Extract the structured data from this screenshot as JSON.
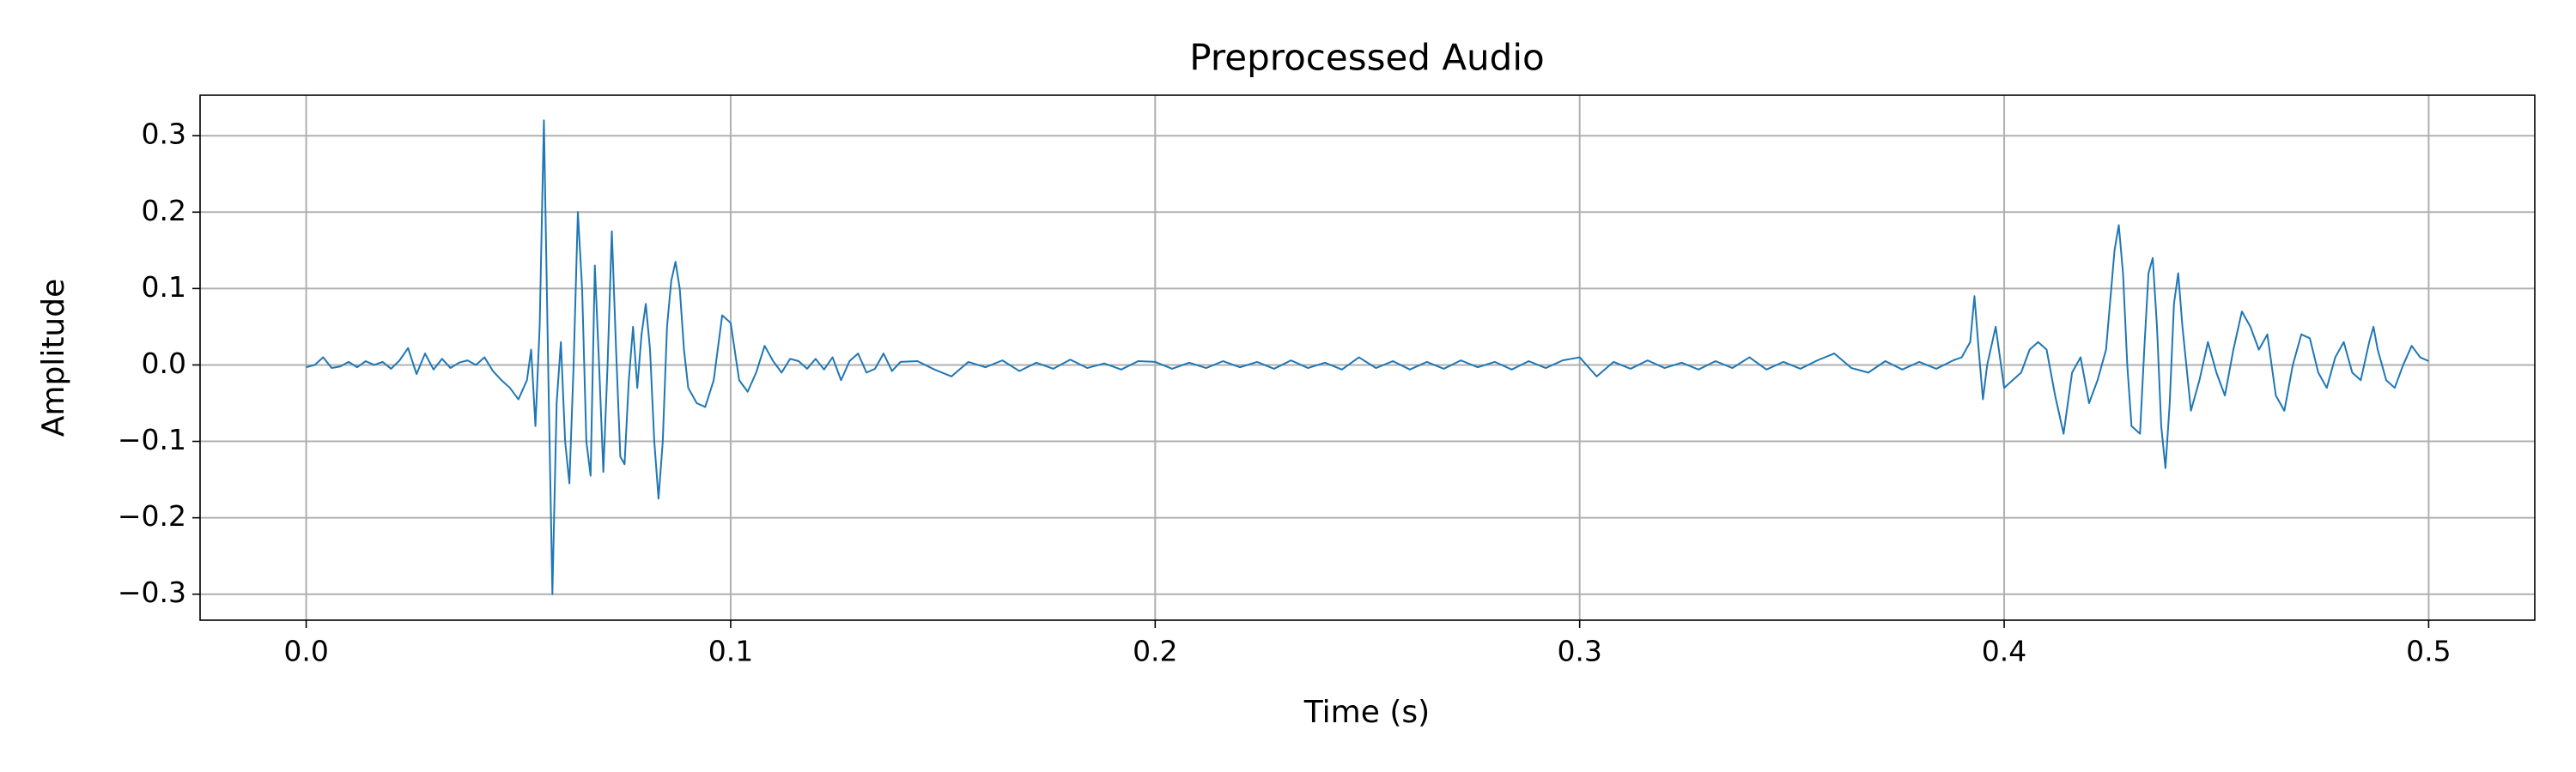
{
  "chart_data": {
    "type": "line",
    "title": "Preprocessed Audio",
    "x_label": "Time (s)",
    "y_label": "Amplitude",
    "x": [
      0,
      0.002,
      0.004,
      0.006,
      0.008,
      0.01,
      0.012,
      0.014,
      0.016,
      0.018,
      0.02,
      0.022,
      0.024,
      0.026,
      0.028,
      0.03,
      0.032,
      0.034,
      0.036,
      0.038,
      0.04,
      0.042,
      0.044,
      0.046,
      0.048,
      0.05,
      0.052,
      0.053,
      0.054,
      0.055,
      0.056,
      0.057,
      0.058,
      0.059,
      0.06,
      0.061,
      0.062,
      0.063,
      0.064,
      0.065,
      0.066,
      0.067,
      0.068,
      0.069,
      0.07,
      0.071,
      0.072,
      0.073,
      0.074,
      0.075,
      0.076,
      0.077,
      0.078,
      0.079,
      0.08,
      0.081,
      0.082,
      0.083,
      0.084,
      0.085,
      0.086,
      0.087,
      0.088,
      0.089,
      0.09,
      0.092,
      0.094,
      0.096,
      0.098,
      0.1,
      0.102,
      0.104,
      0.106,
      0.108,
      0.11,
      0.112,
      0.114,
      0.116,
      0.118,
      0.12,
      0.122,
      0.124,
      0.126,
      0.128,
      0.13,
      0.132,
      0.134,
      0.136,
      0.138,
      0.14,
      0.144,
      0.148,
      0.152,
      0.156,
      0.16,
      0.164,
      0.168,
      0.172,
      0.176,
      0.18,
      0.184,
      0.188,
      0.192,
      0.196,
      0.2,
      0.204,
      0.208,
      0.212,
      0.216,
      0.22,
      0.224,
      0.228,
      0.232,
      0.236,
      0.24,
      0.244,
      0.248,
      0.252,
      0.256,
      0.26,
      0.264,
      0.268,
      0.272,
      0.276,
      0.28,
      0.284,
      0.288,
      0.292,
      0.296,
      0.3,
      0.304,
      0.308,
      0.312,
      0.316,
      0.32,
      0.324,
      0.328,
      0.332,
      0.336,
      0.34,
      0.344,
      0.348,
      0.352,
      0.356,
      0.36,
      0.364,
      0.368,
      0.372,
      0.376,
      0.38,
      0.384,
      0.388,
      0.39,
      0.392,
      0.393,
      0.394,
      0.395,
      0.396,
      0.398,
      0.4,
      0.402,
      0.404,
      0.406,
      0.408,
      0.41,
      0.412,
      0.414,
      0.416,
      0.418,
      0.42,
      0.422,
      0.424,
      0.426,
      0.427,
      0.428,
      0.429,
      0.43,
      0.432,
      0.433,
      0.434,
      0.435,
      0.436,
      0.437,
      0.438,
      0.439,
      0.44,
      0.441,
      0.442,
      0.444,
      0.446,
      0.448,
      0.45,
      0.452,
      0.454,
      0.456,
      0.458,
      0.46,
      0.462,
      0.464,
      0.466,
      0.468,
      0.47,
      0.472,
      0.474,
      0.476,
      0.478,
      0.48,
      0.482,
      0.484,
      0.486,
      0.487,
      0.488,
      0.49,
      0.492,
      0.494,
      0.496,
      0.498,
      0.5
    ],
    "values": [
      -0.003,
      0,
      0.01,
      -0.004,
      -0.002,
      0.004,
      -0.003,
      0.005,
      0,
      0.004,
      -0.005,
      0.006,
      0.022,
      -0.012,
      0.015,
      -0.006,
      0.008,
      -0.004,
      0.003,
      0.006,
      0,
      0.01,
      -0.008,
      -0.02,
      -0.03,
      -0.045,
      -0.02,
      0.02,
      -0.08,
      0.05,
      0.32,
      0,
      -0.3,
      -0.05,
      0.03,
      -0.1,
      -0.155,
      0,
      0.2,
      0.1,
      -0.1,
      -0.145,
      0.13,
      0,
      -0.14,
      0,
      0.175,
      0.02,
      -0.12,
      -0.13,
      -0.02,
      0.05,
      -0.03,
      0.04,
      0.08,
      0.02,
      -0.1,
      -0.175,
      -0.1,
      0.05,
      0.11,
      0.135,
      0.1,
      0.02,
      -0.03,
      -0.05,
      -0.055,
      -0.02,
      0.065,
      0.055,
      -0.02,
      -0.035,
      -0.01,
      0.025,
      0.005,
      -0.01,
      0.008,
      0.005,
      -0.005,
      0.008,
      -0.006,
      0.01,
      -0.02,
      0.005,
      0.015,
      -0.01,
      -0.005,
      0.015,
      -0.008,
      0.004,
      0.005,
      -0.006,
      -0.015,
      0.004,
      -0.003,
      0.006,
      -0.008,
      0.003,
      -0.005,
      0.007,
      -0.004,
      0.002,
      -0.006,
      0.005,
      0.004,
      -0.005,
      0.003,
      -0.004,
      0.005,
      -0.003,
      0.004,
      -0.005,
      0.006,
      -0.004,
      0.003,
      -0.006,
      0.01,
      -0.004,
      0.005,
      -0.006,
      0.004,
      -0.005,
      0.006,
      -0.003,
      0.004,
      -0.006,
      0.005,
      -0.004,
      0.006,
      0.01,
      -0.015,
      0.004,
      -0.005,
      0.006,
      -0.004,
      0.003,
      -0.006,
      0.005,
      -0.004,
      0.01,
      -0.006,
      0.004,
      -0.005,
      0.006,
      0.015,
      -0.004,
      -0.01,
      0.005,
      -0.006,
      0.004,
      -0.005,
      0.006,
      0.01,
      0.03,
      0.09,
      0.02,
      -0.045,
      0,
      0.05,
      -0.03,
      -0.02,
      -0.01,
      0.02,
      0.03,
      0.02,
      -0.04,
      -0.09,
      -0.01,
      0.01,
      -0.05,
      -0.02,
      0.02,
      0.15,
      0.183,
      0.12,
      0,
      -0.08,
      -0.09,
      0.02,
      0.12,
      0.14,
      0.05,
      -0.08,
      -0.135,
      -0.05,
      0.08,
      0.12,
      0.05,
      -0.06,
      -0.02,
      0.03,
      -0.01,
      -0.04,
      0.02,
      0.07,
      0.05,
      0.02,
      0.04,
      -0.04,
      -0.06,
      0,
      0.04,
      0.035,
      -0.01,
      -0.03,
      0.01,
      0.03,
      -0.01,
      -0.02,
      0.03,
      0.05,
      0.02,
      -0.02,
      -0.03,
      0,
      0.025,
      0.01,
      0.005
    ],
    "color": "#1f77b4",
    "xlim": [
      -0.025,
      0.525
    ],
    "xticks": [
      {
        "value": 0,
        "label": "0.0"
      },
      0.1,
      0.2,
      0.3,
      0.4,
      0.5
    ],
    "ylim": [
      -0.334,
      0.353
    ],
    "yticks": [
      {
        "value": -0.3,
        "label": "−0.3"
      },
      {
        "value": -0.2,
        "label": "−0.2"
      },
      {
        "value": -0.1,
        "label": "−0.1"
      },
      {
        "value": 0,
        "label": "0.0"
      },
      0.1,
      0.2,
      0.3
    ],
    "grid": true
  }
}
